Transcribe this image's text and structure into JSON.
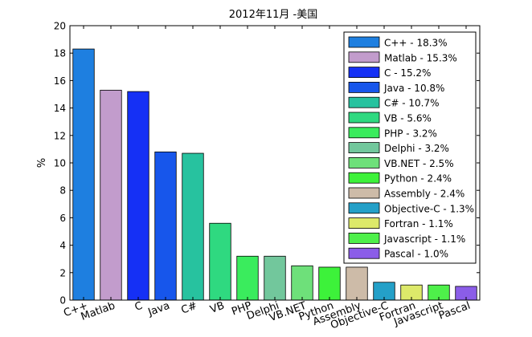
{
  "chart_data": {
    "type": "bar",
    "title": "2012年11月 -美国",
    "xlabel": "",
    "ylabel": "%",
    "ylim": [
      0,
      20
    ],
    "yticks": [
      0,
      2,
      4,
      6,
      8,
      10,
      12,
      14,
      16,
      18,
      20
    ],
    "grid": false,
    "legend_position": "top-right",
    "categories": [
      "C++",
      "Matlab",
      "C",
      "Java",
      "C#",
      "VB",
      "PHP",
      "Delphi",
      "VB.NET",
      "Python",
      "Assembly",
      "Objective-C",
      "Fortran",
      "Javascript",
      "Pascal"
    ],
    "values": [
      18.3,
      15.3,
      15.2,
      10.8,
      10.7,
      5.6,
      3.2,
      3.2,
      2.5,
      2.4,
      2.4,
      1.3,
      1.1,
      1.1,
      1.0
    ],
    "colors": [
      "#1e7fe0",
      "#c29ccc",
      "#1530f5",
      "#1756eb",
      "#27c29f",
      "#2fd980",
      "#3aec5d",
      "#72c79c",
      "#6ee07a",
      "#3df23a",
      "#cdbba8",
      "#24a0c8",
      "#dde96a",
      "#4ef04a",
      "#8b5de8"
    ],
    "legend": [
      "C++ - 18.3%",
      "Matlab - 15.3%",
      "C - 15.2%",
      "Java - 10.8%",
      "C# - 10.7%",
      "VB - 5.6%",
      "PHP - 3.2%",
      "Delphi - 3.2%",
      "VB.NET - 2.5%",
      "Python - 2.4%",
      "Assembly - 2.4%",
      "Objective-C - 1.3%",
      "Fortran - 1.1%",
      "Javascript - 1.1%",
      "Pascal - 1.0%"
    ]
  }
}
